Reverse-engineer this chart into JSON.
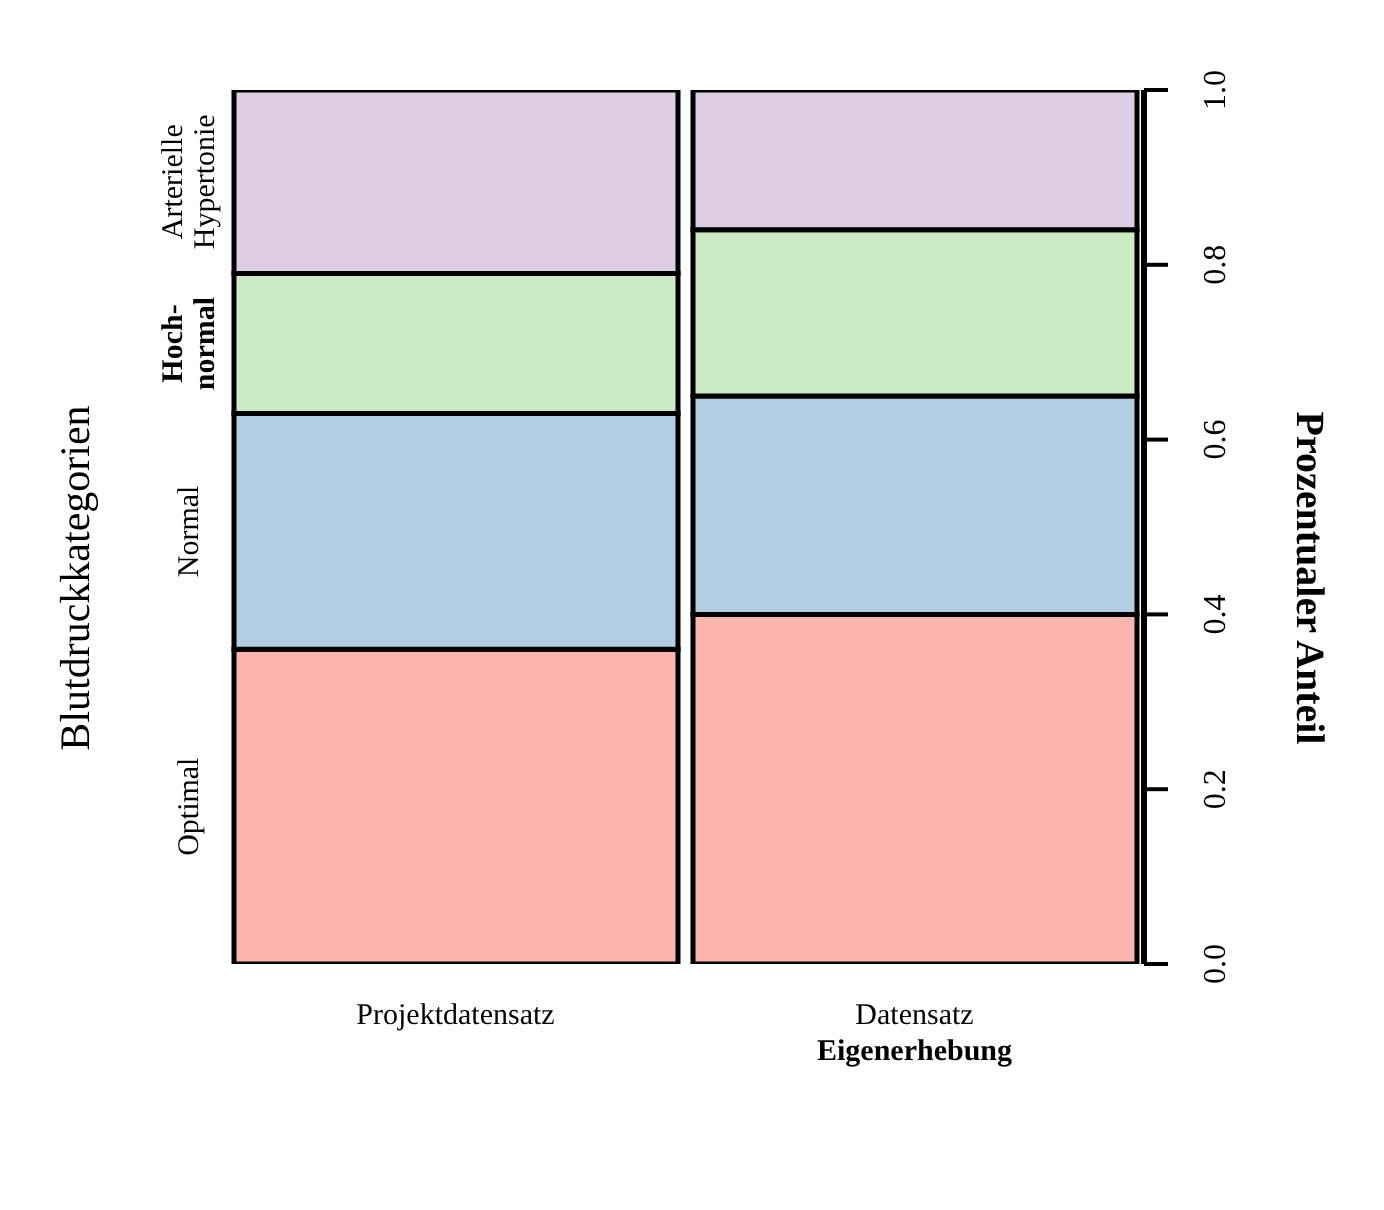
{
  "chart_data": {
    "type": "bar",
    "stacked": true,
    "ylabel": "Prozentualer Anteil",
    "legend_title": "Blutdruckkategorien",
    "categories": [
      "Projektdatensatz",
      "Datensatz Eigenerhebung"
    ],
    "series": [
      {
        "name": "Optimal",
        "color": "#fbb4ae",
        "values": [
          0.36,
          0.4
        ]
      },
      {
        "name": "Normal",
        "color": "#b3cde3",
        "values": [
          0.27,
          0.25
        ]
      },
      {
        "name": "Hoch-normal",
        "color": "#ccebc5",
        "values": [
          0.16,
          0.19
        ]
      },
      {
        "name": "Arterielle Hypertonie",
        "color": "#decbe4",
        "values": [
          0.21,
          0.16
        ]
      }
    ],
    "ylim": [
      0,
      1
    ],
    "yticks": [
      {
        "value": 0,
        "label": "0.0"
      },
      0.2,
      0.4,
      0.6,
      0.8,
      {
        "value": 1,
        "label": "1.0"
      }
    ]
  }
}
